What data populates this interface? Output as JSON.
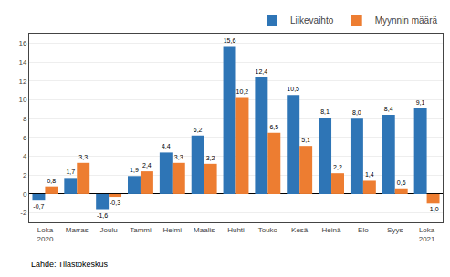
{
  "chart_data": {
    "type": "bar",
    "categories": [
      "Loka\n2020",
      "Marras",
      "Joulu",
      "Tammi",
      "Helmi",
      "Maalis",
      "Huhti",
      "Touko",
      "Kesä",
      "Heinä",
      "Elo",
      "Syys",
      "Loka\n2021"
    ],
    "series": [
      {
        "name": "Liikevaihto",
        "color": "#2E75B6",
        "values": [
          -0.7,
          1.7,
          -1.6,
          1.9,
          4.4,
          6.2,
          15.6,
          12.4,
          10.5,
          8.1,
          8.0,
          8.4,
          9.1
        ],
        "value_labels": [
          "-0,7",
          "1,7",
          "-1,6",
          "1,9",
          "4,4",
          "6,2",
          "15,6",
          "12,4",
          "10,5",
          "8,1",
          "8,0",
          "8,4",
          "9,1"
        ]
      },
      {
        "name": "Myynnin määrä",
        "color": "#ED7D31",
        "values": [
          0.8,
          3.3,
          -0.3,
          2.4,
          3.3,
          3.2,
          10.2,
          6.5,
          5.1,
          2.2,
          1.4,
          0.6,
          -1.0
        ],
        "value_labels": [
          "0,8",
          "3,3",
          "-0,3",
          "2,4",
          "3,3",
          "3,2",
          "10,2",
          "6,5",
          "5,1",
          "2,2",
          "1,4",
          "0,6",
          "-1,0"
        ]
      }
    ],
    "ylim": [
      -3,
      17
    ],
    "yticks": [
      -2,
      0,
      2,
      4,
      6,
      8,
      10,
      12,
      14,
      16
    ],
    "grid": true,
    "data_labels": true,
    "legend": "upper right",
    "annotations": [
      "Lähde: Tilastokeskus"
    ]
  }
}
